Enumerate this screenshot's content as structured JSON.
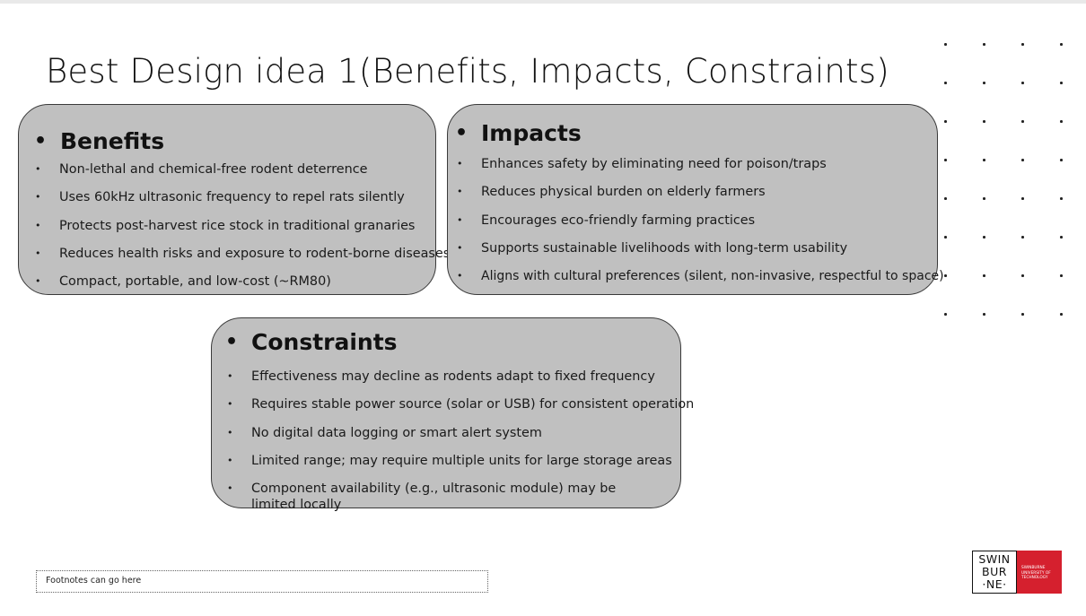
{
  "slide": {
    "title": "Best Design idea 1(Benefits, Impacts, Constraints)",
    "footnote": "Footnotes can go here"
  },
  "benefits": {
    "heading": "Benefits",
    "items": [
      "Non-lethal and chemical-free rodent deterrence",
      "Uses 60kHz ultrasonic frequency to repel rats silently",
      "Protects post-harvest rice stock in traditional granaries",
      "Reduces health risks and exposure to rodent-borne diseases",
      "Compact, portable, and low-cost (~RM80)"
    ]
  },
  "impacts": {
    "heading": "Impacts",
    "items": [
      "Enhances safety by eliminating need for poison/traps",
      "Reduces physical burden on elderly farmers",
      "Encourages eco-friendly farming practices",
      "Supports sustainable livelihoods with long-term usability",
      "Aligns with cultural preferences (silent, non-invasive, respectful to space)"
    ]
  },
  "constraints": {
    "heading": "Constraints",
    "items": [
      "Effectiveness may decline as rodents adapt to fixed frequency",
      "Requires stable power source (solar or USB) for consistent operation",
      "No digital data logging or smart alert system",
      "Limited range; may require multiple units for large storage areas",
      "Component availability (e.g., ultrasonic module) may be limited locally"
    ]
  },
  "logo": {
    "row1": "SWIN",
    "row2": "BUR",
    "row3": "·NE·",
    "tagline_1": "SWINBURNE",
    "tagline_2": "UNIVERSITY OF",
    "tagline_3": "TECHNOLOGY"
  },
  "colors": {
    "box_fill": "#c0c0c0",
    "box_border": "#3a3a3a",
    "brand_red": "#d5202e"
  },
  "icons": {
    "bullet": "bullet-dot",
    "decor": "dot-grid"
  }
}
